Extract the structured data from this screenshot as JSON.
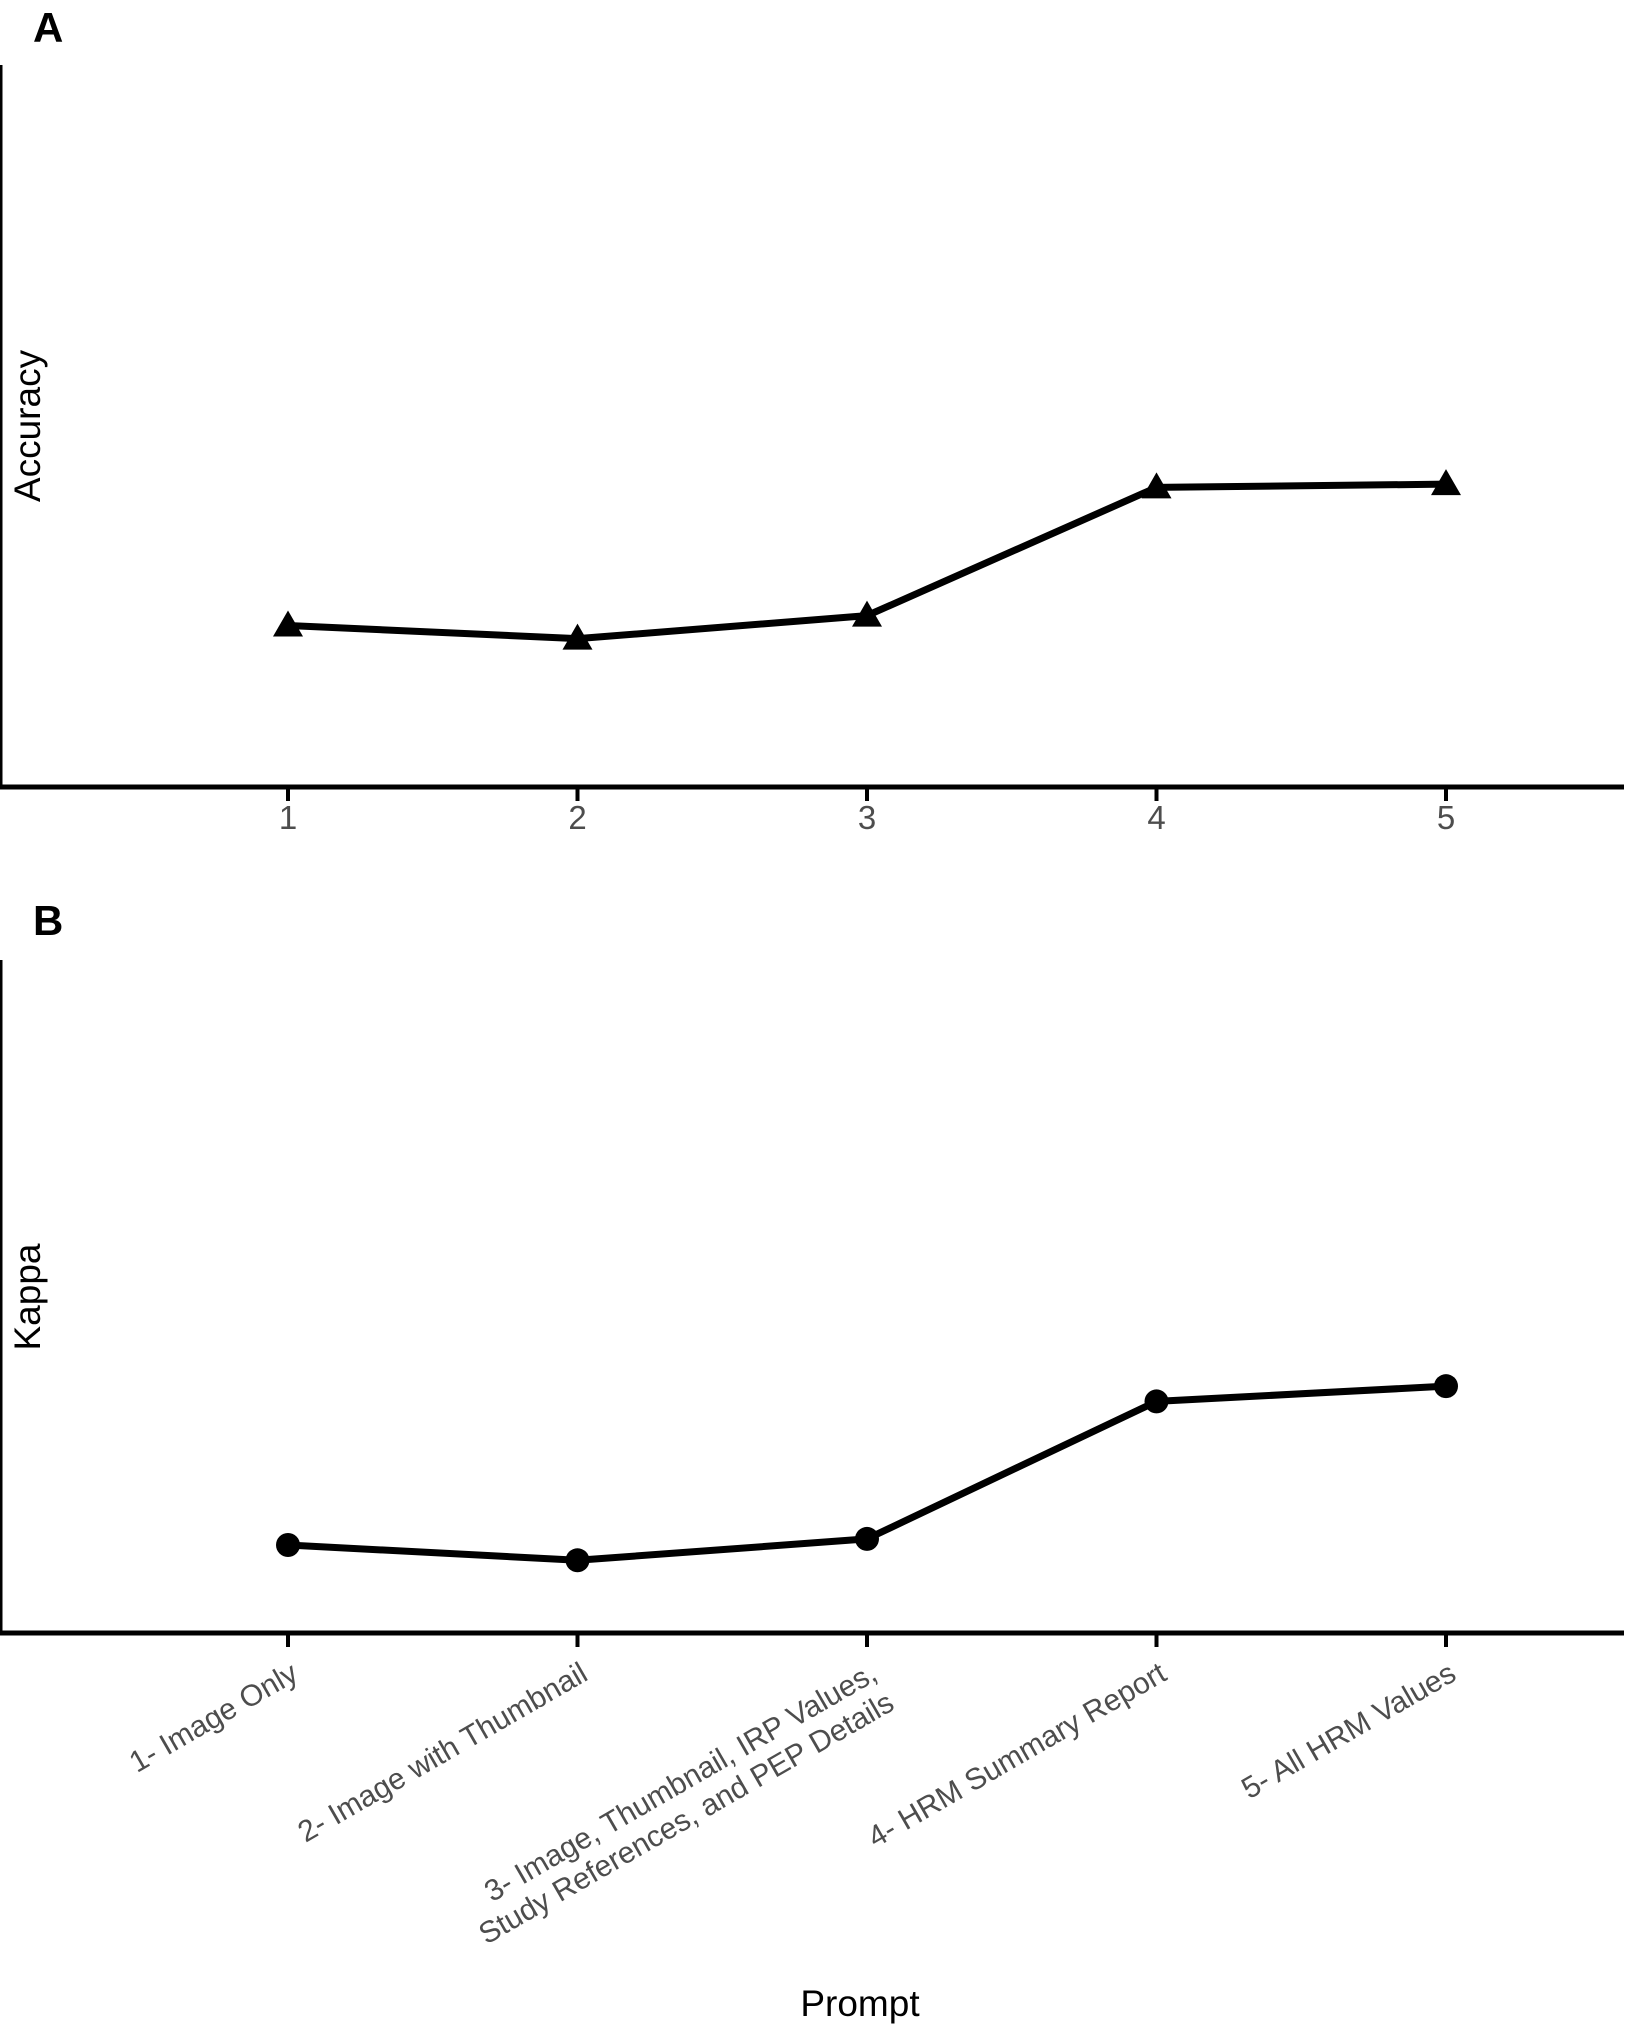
{
  "figure": {
    "background": "#ffffff",
    "accent_color": "#000000",
    "tick_label_color": "#4d4d4d",
    "panels": [
      "A",
      "B"
    ]
  },
  "chart_data": [
    {
      "type": "line",
      "panel": "A",
      "tag": "A",
      "title": "",
      "xlabel": "",
      "ylabel": "Accuracy",
      "x": [
        1,
        2,
        3,
        4,
        5
      ],
      "xtick_labels": [
        "1",
        "2",
        "3",
        "4",
        "5"
      ],
      "values": [
        0.2,
        0.18,
        0.215,
        0.41,
        0.415
      ],
      "ylim": [
        0,
        1
      ],
      "yticks": [
        "0.0",
        "0.2",
        "0.4",
        "0.6",
        "0.8",
        "1.0"
      ],
      "marker": "triangle",
      "line_color": "#000000",
      "grid": false,
      "legend": false
    },
    {
      "type": "line",
      "panel": "B",
      "tag": "B",
      "title": "",
      "xlabel": "Prompt",
      "ylabel": "Kappa",
      "x": [
        1,
        2,
        3,
        4,
        5
      ],
      "categories": [
        "1- Image Only",
        "2- Image with Thumbnail",
        "3- Image, Thumbnail, IRP Values,\nStudy References, and PEP Details",
        "4- HRM Summary Report",
        "5- All HRM Values"
      ],
      "values": [
        0.09,
        0.065,
        0.1,
        0.325,
        0.35
      ],
      "ylim": [
        0,
        1
      ],
      "yticks": [
        "0.0",
        "0.2",
        "0.4",
        "0.6",
        "0.8",
        "1.0"
      ],
      "marker": "circle",
      "line_color": "#000000",
      "xtick_angle": 30,
      "grid": false,
      "legend": false
    }
  ]
}
